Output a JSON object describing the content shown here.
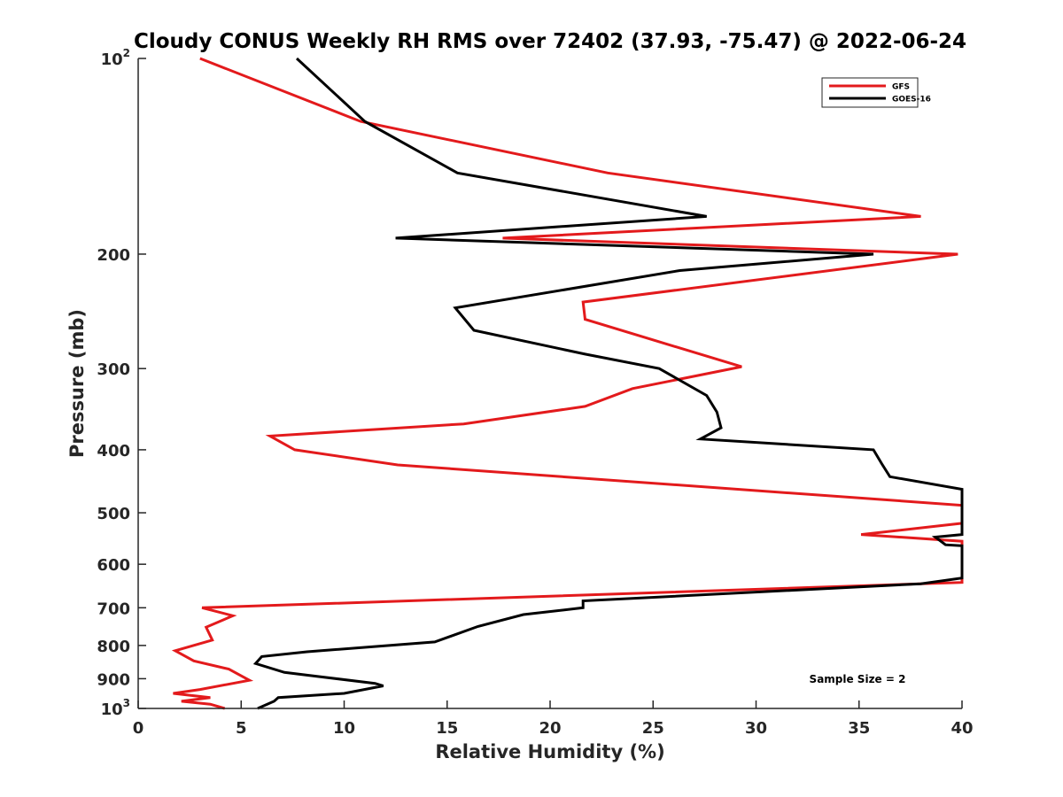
{
  "chart_data": {
    "type": "line",
    "title": "Cloudy CONUS Weekly RH RMS over 72402 (37.93, -75.47) @ 2022-06-24",
    "xlabel": "Relative Humidity (%)",
    "ylabel": "Pressure (mb)",
    "xlim": [
      0,
      40
    ],
    "ylim": [
      100,
      1000
    ],
    "yscale": "log",
    "y_reversed": true,
    "grid": false,
    "legend_position": "top-right",
    "x_ticks": [
      0,
      5,
      10,
      15,
      20,
      25,
      30,
      35,
      40
    ],
    "y_ticks": [
      {
        "value": 100,
        "base": "10",
        "exp": "2"
      },
      {
        "value": 200,
        "label": "200"
      },
      {
        "value": 300,
        "label": "300"
      },
      {
        "value": 400,
        "label": "400"
      },
      {
        "value": 500,
        "label": "500"
      },
      {
        "value": 600,
        "label": "600"
      },
      {
        "value": 700,
        "label": "700"
      },
      {
        "value": 800,
        "label": "800"
      },
      {
        "value": 900,
        "label": "900"
      },
      {
        "value": 1000,
        "base": "10",
        "exp": "3"
      }
    ],
    "series": [
      {
        "name": "GFS",
        "color": "#e31a1c",
        "points": [
          [
            3.0,
            100
          ],
          [
            10.8,
            125
          ],
          [
            22.8,
            150
          ],
          [
            38.0,
            175
          ],
          [
            17.7,
            189
          ],
          [
            39.8,
            200
          ],
          [
            21.6,
            237
          ],
          [
            21.7,
            252
          ],
          [
            29.3,
            298
          ],
          [
            24.0,
            322
          ],
          [
            21.7,
            343
          ],
          [
            15.8,
            365
          ],
          [
            6.4,
            381
          ],
          [
            7.6,
            400
          ],
          [
            12.6,
            422
          ],
          [
            40.0,
            487
          ],
          [
            40.0,
            519
          ],
          [
            35.1,
            540
          ],
          [
            40.0,
            553
          ],
          [
            40.0,
            640
          ],
          [
            3.1,
            700
          ],
          [
            4.6,
            720
          ],
          [
            3.3,
            750
          ],
          [
            3.6,
            785
          ],
          [
            1.8,
            815
          ],
          [
            2.7,
            845
          ],
          [
            4.4,
            870
          ],
          [
            5.4,
            905
          ],
          [
            3.0,
            935
          ],
          [
            1.7,
            948
          ],
          [
            3.5,
            962
          ],
          [
            2.1,
            975
          ],
          [
            3.5,
            985
          ],
          [
            4.2,
            1000
          ]
        ]
      },
      {
        "name": "GOES-16",
        "color": "#000000",
        "points": [
          [
            7.7,
            100
          ],
          [
            11.0,
            125
          ],
          [
            15.5,
            150
          ],
          [
            27.6,
            175
          ],
          [
            12.5,
            189
          ],
          [
            35.7,
            200
          ],
          [
            26.3,
            212
          ],
          [
            15.4,
            242
          ],
          [
            16.3,
            262
          ],
          [
            21.7,
            285
          ],
          [
            25.3,
            300
          ],
          [
            27.6,
            330
          ],
          [
            28.1,
            350
          ],
          [
            28.3,
            370
          ],
          [
            27.3,
            385
          ],
          [
            35.7,
            400
          ],
          [
            36.1,
            420
          ],
          [
            36.5,
            440
          ],
          [
            40.0,
            460
          ],
          [
            40.0,
            540
          ],
          [
            38.7,
            545
          ],
          [
            39.2,
            560
          ],
          [
            40.0,
            562
          ],
          [
            40.0,
            630
          ],
          [
            38.0,
            643
          ],
          [
            21.6,
            683
          ],
          [
            21.6,
            700
          ],
          [
            18.7,
            717
          ],
          [
            16.5,
            748
          ],
          [
            14.4,
            790
          ],
          [
            8.2,
            818
          ],
          [
            6.0,
            832
          ],
          [
            5.7,
            853
          ],
          [
            7.1,
            880
          ],
          [
            11.5,
            915
          ],
          [
            11.9,
            923
          ],
          [
            10.0,
            948
          ],
          [
            6.8,
            962
          ],
          [
            6.6,
            975
          ],
          [
            5.8,
            1000
          ]
        ]
      }
    ],
    "annotations": [
      "Sample Size = 2"
    ]
  }
}
